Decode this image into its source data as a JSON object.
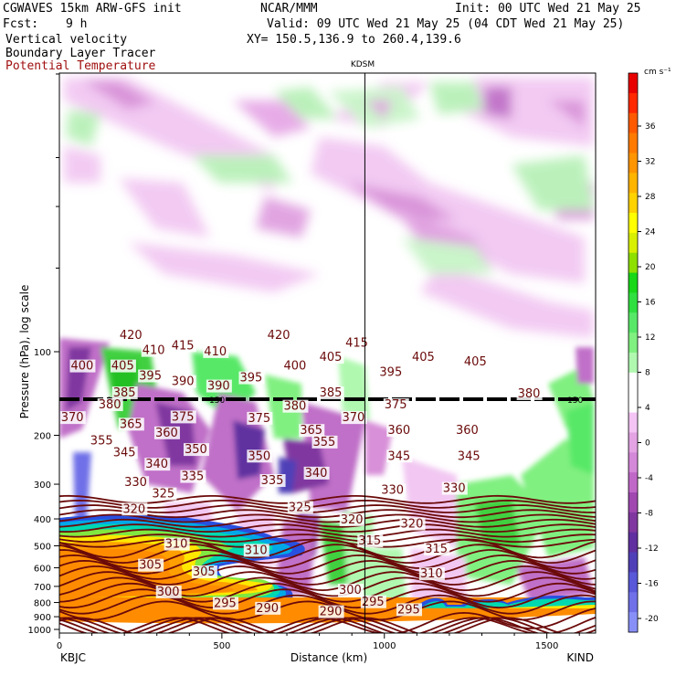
{
  "header": {
    "model": "CGWAVES 15km ARW-GFS init",
    "org": "NCAR/MMM",
    "init": "Init: 00 UTC Wed 21 May 25",
    "fcst_label": "Fcst:",
    "fcst_value": "9 h",
    "valid": "Valid: 09 UTC Wed 21 May 25 (04 CDT Wed 21 May 25)",
    "field1": "Vertical velocity",
    "field2": "Boundary Layer Tracer",
    "field3": "Potential Temperature",
    "xy": "XY= 150.5,136.9 to 260.4,139.6"
  },
  "colors": {
    "theta_contour": "#6b0a0a",
    "title_red": "#a01010"
  },
  "chart_data": {
    "type": "heatmap",
    "xlabel": "Distance (km)",
    "ylabel": "Pressure (hPa), log scale",
    "xlim": [
      0,
      1650
    ],
    "x_ticks": [
      "0",
      "500",
      "1000",
      "1500"
    ],
    "y_ticks": [
      "100",
      "200",
      "300",
      "400",
      "500",
      "600",
      "700",
      "800",
      "900",
      "1000"
    ],
    "left_station": "KBJC",
    "right_station": "KIND",
    "marker_label": "KDSM",
    "marker_x": 940,
    "colorbar": {
      "unit": "cm s⁻¹",
      "labels": [
        "36",
        "32",
        "28",
        "24",
        "20",
        "16",
        "12",
        "8",
        "4",
        "0",
        "-4",
        "-8",
        "-12",
        "-16",
        "-20"
      ],
      "colors": [
        "#e80000",
        "#ff2800",
        "#ff5a00",
        "#ff7a00",
        "#ff9500",
        "#ffb400",
        "#ffd200",
        "#ffff00",
        "#d8f000",
        "#8ee000",
        "#18d818",
        "#30e040",
        "#58e868",
        "#80f080",
        "#b0f8b0",
        "#ffffff",
        "#ffffff",
        "#f4c4f4",
        "#e4a4e4",
        "#d488d8",
        "#c068c8",
        "#a048b0",
        "#8038a0",
        "#6030a0",
        "#5040b8",
        "#5858d8",
        "#7070e8",
        "#8890f8"
      ]
    },
    "theta_labels": [
      {
        "text": "420",
        "x": 185,
        "p": 90
      },
      {
        "text": "410",
        "x": 255,
        "p": 102
      },
      {
        "text": "415",
        "x": 345,
        "p": 98
      },
      {
        "text": "410",
        "x": 445,
        "p": 103
      },
      {
        "text": "420",
        "x": 640,
        "p": 90
      },
      {
        "text": "415",
        "x": 880,
        "p": 96
      },
      {
        "text": "405",
        "x": 800,
        "p": 108
      },
      {
        "text": "405",
        "x": 1085,
        "p": 108
      },
      {
        "text": "400",
        "x": 35,
        "p": 116
      },
      {
        "text": "405",
        "x": 160,
        "p": 116
      },
      {
        "text": "395",
        "x": 245,
        "p": 126
      },
      {
        "text": "390",
        "x": 345,
        "p": 132
      },
      {
        "text": "390",
        "x": 455,
        "p": 137
      },
      {
        "text": "395",
        "x": 555,
        "p": 128
      },
      {
        "text": "400",
        "x": 690,
        "p": 116
      },
      {
        "text": "395",
        "x": 985,
        "p": 122
      },
      {
        "text": "405",
        "x": 1245,
        "p": 112
      },
      {
        "text": "385",
        "x": 165,
        "p": 145
      },
      {
        "text": "380",
        "x": 120,
        "p": 160
      },
      {
        "text": "375",
        "x": 345,
        "p": 177
      },
      {
        "text": "375",
        "x": 580,
        "p": 179
      },
      {
        "text": "380",
        "x": 690,
        "p": 162
      },
      {
        "text": "385",
        "x": 800,
        "p": 145
      },
      {
        "text": "375",
        "x": 1000,
        "p": 160
      },
      {
        "text": "380",
        "x": 1410,
        "p": 146
      },
      {
        "text": "370",
        "x": 5,
        "p": 178
      },
      {
        "text": "365",
        "x": 185,
        "p": 188
      },
      {
        "text": "360",
        "x": 295,
        "p": 202
      },
      {
        "text": "370",
        "x": 870,
        "p": 178
      },
      {
        "text": "365",
        "x": 740,
        "p": 198
      },
      {
        "text": "360",
        "x": 1010,
        "p": 198
      },
      {
        "text": "360",
        "x": 1220,
        "p": 198
      },
      {
        "text": "355",
        "x": 95,
        "p": 216
      },
      {
        "text": "345",
        "x": 165,
        "p": 238
      },
      {
        "text": "340",
        "x": 265,
        "p": 262
      },
      {
        "text": "350",
        "x": 385,
        "p": 232
      },
      {
        "text": "335",
        "x": 375,
        "p": 290
      },
      {
        "text": "355",
        "x": 780,
        "p": 218
      },
      {
        "text": "345",
        "x": 1010,
        "p": 245
      },
      {
        "text": "345",
        "x": 1225,
        "p": 245
      },
      {
        "text": "350",
        "x": 580,
        "p": 245
      },
      {
        "text": "340",
        "x": 755,
        "p": 282
      },
      {
        "text": "335",
        "x": 620,
        "p": 300
      },
      {
        "text": "330",
        "x": 200,
        "p": 305
      },
      {
        "text": "325",
        "x": 285,
        "p": 335
      },
      {
        "text": "320",
        "x": 195,
        "p": 380
      },
      {
        "text": "330",
        "x": 990,
        "p": 325
      },
      {
        "text": "330",
        "x": 1180,
        "p": 320
      },
      {
        "text": "325",
        "x": 705,
        "p": 375
      },
      {
        "text": "320",
        "x": 865,
        "p": 415
      },
      {
        "text": "320",
        "x": 1050,
        "p": 430
      },
      {
        "text": "315",
        "x": 920,
        "p": 495
      },
      {
        "text": "315",
        "x": 1125,
        "p": 530
      },
      {
        "text": "310",
        "x": 325,
        "p": 508
      },
      {
        "text": "310",
        "x": 570,
        "p": 535
      },
      {
        "text": "310",
        "x": 1110,
        "p": 650
      },
      {
        "text": "305",
        "x": 245,
        "p": 605
      },
      {
        "text": "305",
        "x": 410,
        "p": 640
      },
      {
        "text": "300",
        "x": 300,
        "p": 755
      },
      {
        "text": "300",
        "x": 860,
        "p": 745
      },
      {
        "text": "295",
        "x": 475,
        "p": 830
      },
      {
        "text": "290",
        "x": 605,
        "p": 865
      },
      {
        "text": "290",
        "x": 800,
        "p": 890
      },
      {
        "text": "295",
        "x": 930,
        "p": 820
      },
      {
        "text": "295",
        "x": 1040,
        "p": 875
      }
    ],
    "theta_lines": [
      420,
      415,
      410,
      405,
      400,
      395,
      390,
      385,
      380,
      375,
      370,
      365,
      360,
      355,
      350,
      345,
      340,
      335,
      330,
      325,
      320,
      315,
      310,
      305,
      300,
      295,
      290
    ],
    "tropopause_label": "150"
  }
}
